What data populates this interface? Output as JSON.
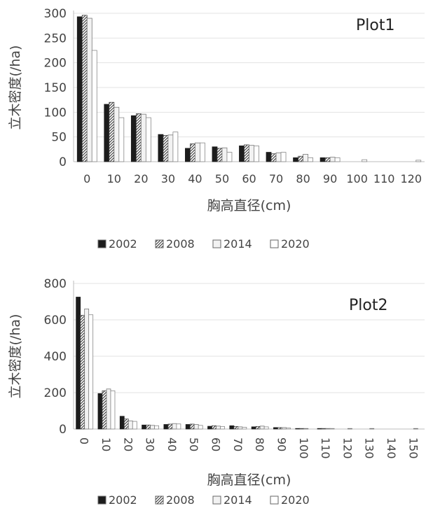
{
  "chart_data": [
    {
      "type": "bar",
      "title": "Plot1",
      "xlabel": "胸高直径(cm)",
      "ylabel": "立木密度(/ha)",
      "ylim": [
        0,
        300
      ],
      "yticks": [
        0,
        50,
        100,
        150,
        200,
        250,
        300
      ],
      "categories": [
        "0",
        "10",
        "20",
        "30",
        "40",
        "50",
        "60",
        "70",
        "80",
        "90",
        "100",
        "110",
        "120"
      ],
      "x_tick_rotation": "horizontal",
      "grid": true,
      "legend_position": "bottom-center",
      "series": [
        {
          "name": "2002",
          "pattern": "solid",
          "values": [
            293,
            116,
            93,
            55,
            27,
            30,
            32,
            19,
            8,
            8,
            0,
            0,
            0
          ]
        },
        {
          "name": "2008",
          "pattern": "hatched",
          "values": [
            296,
            120,
            97,
            53,
            36,
            27,
            34,
            16,
            11,
            8,
            0,
            0,
            0
          ]
        },
        {
          "name": "2014",
          "pattern": "light",
          "values": [
            290,
            110,
            96,
            54,
            38,
            28,
            33,
            18,
            15,
            9,
            0,
            0,
            0
          ]
        },
        {
          "name": "2020",
          "pattern": "white",
          "values": [
            225,
            89,
            89,
            60,
            38,
            19,
            32,
            19,
            8,
            8,
            4,
            0,
            3
          ]
        }
      ]
    },
    {
      "type": "bar",
      "title": "Plot2",
      "xlabel": "胸高直径(cm)",
      "ylabel": "立木密度(/ha)",
      "ylim": [
        0,
        800
      ],
      "yticks": [
        0,
        200,
        400,
        600,
        800
      ],
      "categories": [
        "0",
        "10",
        "20",
        "30",
        "40",
        "50",
        "60",
        "70",
        "80",
        "90",
        "100",
        "110",
        "120",
        "130",
        "140",
        "150"
      ],
      "x_tick_rotation": "vertical",
      "grid": true,
      "legend_position": "bottom-center",
      "series": [
        {
          "name": "2002",
          "pattern": "solid",
          "values": [
            725,
            195,
            70,
            22,
            25,
            25,
            15,
            18,
            12,
            8,
            3,
            3,
            0,
            0,
            0,
            0
          ]
        },
        {
          "name": "2008",
          "pattern": "hatched",
          "values": [
            625,
            210,
            55,
            22,
            27,
            27,
            18,
            14,
            14,
            8,
            3,
            3,
            0,
            0,
            0,
            0
          ]
        },
        {
          "name": "2014",
          "pattern": "light",
          "values": [
            660,
            220,
            45,
            20,
            30,
            25,
            16,
            12,
            16,
            8,
            3,
            3,
            3,
            3,
            0,
            3
          ]
        },
        {
          "name": "2020",
          "pattern": "white",
          "values": [
            628,
            210,
            42,
            18,
            28,
            20,
            14,
            10,
            12,
            6,
            0,
            3,
            0,
            0,
            0,
            0
          ]
        }
      ]
    }
  ]
}
